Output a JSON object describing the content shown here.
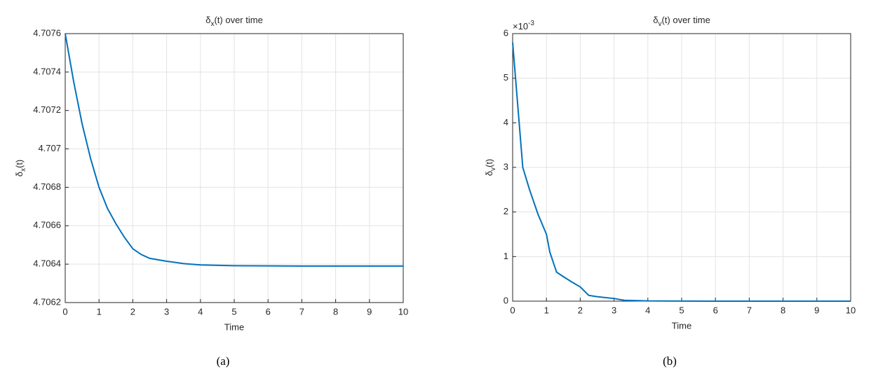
{
  "chart_data": [
    {
      "type": "line",
      "title": [
        "δ",
        "x",
        "(t) over time"
      ],
      "xlabel": "Time",
      "ylabel": [
        "δ",
        "x",
        "(t)"
      ],
      "caption": "(a)",
      "x": [
        0,
        0.25,
        0.5,
        0.75,
        1,
        1.25,
        1.5,
        1.75,
        2,
        2.25,
        2.5,
        3,
        3.5,
        4,
        5,
        6,
        7,
        8,
        9,
        10
      ],
      "series": [
        {
          "name": "δx(t)",
          "color": "#0072bd",
          "values": [
            4.7076,
            4.70735,
            4.70713,
            4.70695,
            4.7068,
            4.70669,
            4.70661,
            4.70654,
            4.70648,
            4.70645,
            4.70643,
            4.706415,
            4.706403,
            4.706396,
            4.706392,
            4.706391,
            4.70639,
            4.70639,
            4.70639,
            4.70639
          ]
        }
      ],
      "xlim": [
        0,
        10
      ],
      "xticks": [
        0,
        1,
        2,
        3,
        4,
        5,
        6,
        7,
        8,
        9,
        10
      ],
      "ylim": [
        4.7062,
        4.7076
      ],
      "yticks": [
        4.7062,
        4.7064,
        4.7066,
        4.7068,
        4.707,
        4.7072,
        4.7074,
        4.7076
      ],
      "grid": true
    },
    {
      "type": "line",
      "title": [
        "δ",
        "v",
        "(t) over time"
      ],
      "xlabel": "Time",
      "ylabel": [
        "δ",
        "v",
        "(t)"
      ],
      "caption": "(b)",
      "y_exponent_label": [
        "×10",
        "-3"
      ],
      "x": [
        0,
        0.3,
        0.5,
        0.75,
        1,
        1.1,
        1.3,
        1.5,
        1.75,
        2,
        2.25,
        2.5,
        3,
        3.3,
        4,
        5,
        6,
        7,
        8,
        9,
        10
      ],
      "series": [
        {
          "name": "δv(t)",
          "color": "#0072bd",
          "values": [
            5.8,
            3.0,
            2.5,
            1.95,
            1.5,
            1.1,
            0.65,
            0.55,
            0.43,
            0.32,
            0.13,
            0.1,
            0.06,
            0.02,
            0.005,
            0.001,
            0,
            0,
            0,
            0,
            0
          ]
        }
      ],
      "xlim": [
        0,
        10
      ],
      "xticks": [
        0,
        1,
        2,
        3,
        4,
        5,
        6,
        7,
        8,
        9,
        10
      ],
      "ylim": [
        0,
        6
      ],
      "yticks": [
        0,
        1,
        2,
        3,
        4,
        5,
        6
      ],
      "grid": true
    }
  ]
}
